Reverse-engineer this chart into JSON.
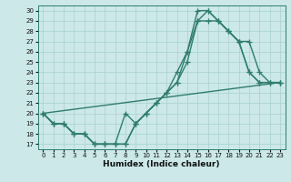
{
  "xlabel": "Humidex (Indice chaleur)",
  "bg_color": "#cce8e8",
  "line_color": "#2e7d6e",
  "xlim": [
    -0.5,
    23.5
  ],
  "ylim": [
    16.5,
    30.5
  ],
  "xticks": [
    0,
    1,
    2,
    3,
    4,
    5,
    6,
    7,
    8,
    9,
    10,
    11,
    12,
    13,
    14,
    15,
    16,
    17,
    18,
    19,
    20,
    21,
    22,
    23
  ],
  "yticks": [
    17,
    18,
    19,
    20,
    21,
    22,
    23,
    24,
    25,
    26,
    27,
    28,
    29,
    30
  ],
  "series": [
    {
      "x": [
        0,
        1,
        2,
        3,
        4,
        5,
        6,
        7,
        8,
        9,
        10,
        11,
        12,
        13,
        14,
        15,
        16,
        17,
        18,
        19,
        20,
        21,
        22,
        23
      ],
      "y": [
        20,
        19,
        19,
        18,
        18,
        17,
        17,
        17,
        17,
        19,
        20,
        21,
        22,
        23,
        26,
        30,
        30,
        29,
        28,
        27,
        24,
        23,
        23,
        23
      ]
    },
    {
      "x": [
        0,
        1,
        2,
        3,
        4,
        5,
        6,
        7,
        8,
        9,
        10,
        11,
        12,
        13,
        14,
        15,
        16,
        17,
        18,
        19,
        20,
        21,
        22,
        23
      ],
      "y": [
        20,
        19,
        19,
        18,
        18,
        17,
        17,
        17,
        17,
        19,
        20,
        21,
        22,
        24,
        26,
        29,
        29,
        29,
        28,
        27,
        24,
        23,
        23,
        23
      ]
    },
    {
      "x": [
        0,
        1,
        2,
        3,
        4,
        5,
        6,
        7,
        8,
        9,
        10,
        11,
        12,
        13,
        14,
        15,
        16,
        17,
        18,
        19,
        20,
        21,
        22,
        23
      ],
      "y": [
        20,
        19,
        19,
        18,
        18,
        17,
        17,
        17,
        20,
        19,
        20,
        21,
        22,
        23,
        25,
        29,
        30,
        29,
        28,
        27,
        27,
        24,
        23,
        23
      ]
    },
    {
      "x": [
        0,
        23
      ],
      "y": [
        20,
        23
      ]
    }
  ],
  "grid_color": "#a8d0d0",
  "marker": "+",
  "markersize": 4,
  "linewidth": 1.0
}
